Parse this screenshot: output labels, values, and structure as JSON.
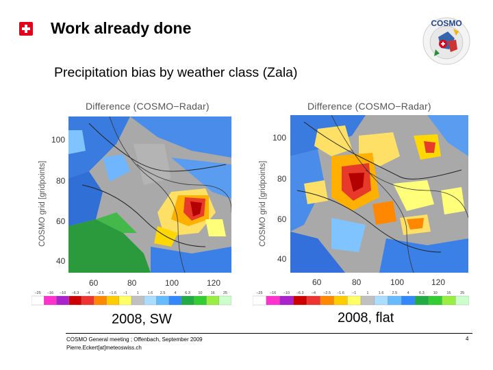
{
  "header": {
    "title": "Work already done",
    "subtitle": "Precipitation bias by weather class (Zala)",
    "logo_text": "COSMO"
  },
  "maps": [
    {
      "title": "Difference (COSMO−Radar)",
      "ylabel": "COSMO grid [gridpoints]",
      "yticks": [
        "100",
        "80",
        "60",
        "40"
      ],
      "xticks": [
        "60",
        "80",
        "100",
        "120"
      ],
      "caption": "2008, SW"
    },
    {
      "title": "Difference (COSMO−Radar)",
      "ylabel": "COSMO grid [gridpoints]",
      "yticks": [
        "100",
        "80",
        "60",
        "40"
      ],
      "xticks": [
        "60",
        "80",
        "100",
        "120"
      ],
      "caption": "2008, flat"
    }
  ],
  "colorbar": {
    "labels": [
      "−25",
      "−16",
      "−10",
      "−6.3",
      "−4",
      "−2.5",
      "−1.6",
      "−1",
      "1",
      "1.6",
      "2.5",
      "4",
      "6.3",
      "10",
      "16",
      "25"
    ],
    "colors": [
      "#ffffff",
      "#ff33cc",
      "#aa22cc",
      "#cc0000",
      "#ee3333",
      "#ff8800",
      "#ffcc00",
      "#ffff66",
      "#c0c0c0",
      "#aaddff",
      "#66bbff",
      "#3388ff",
      "#22aa44",
      "#33cc33",
      "#99ee44",
      "#ccffcc"
    ]
  },
  "footer": {
    "line1": "COSMO General meeting ; Offenbach, September 2009",
    "line2": "Pierre.Eckert[at]meteoswiss.ch",
    "page": "4"
  }
}
